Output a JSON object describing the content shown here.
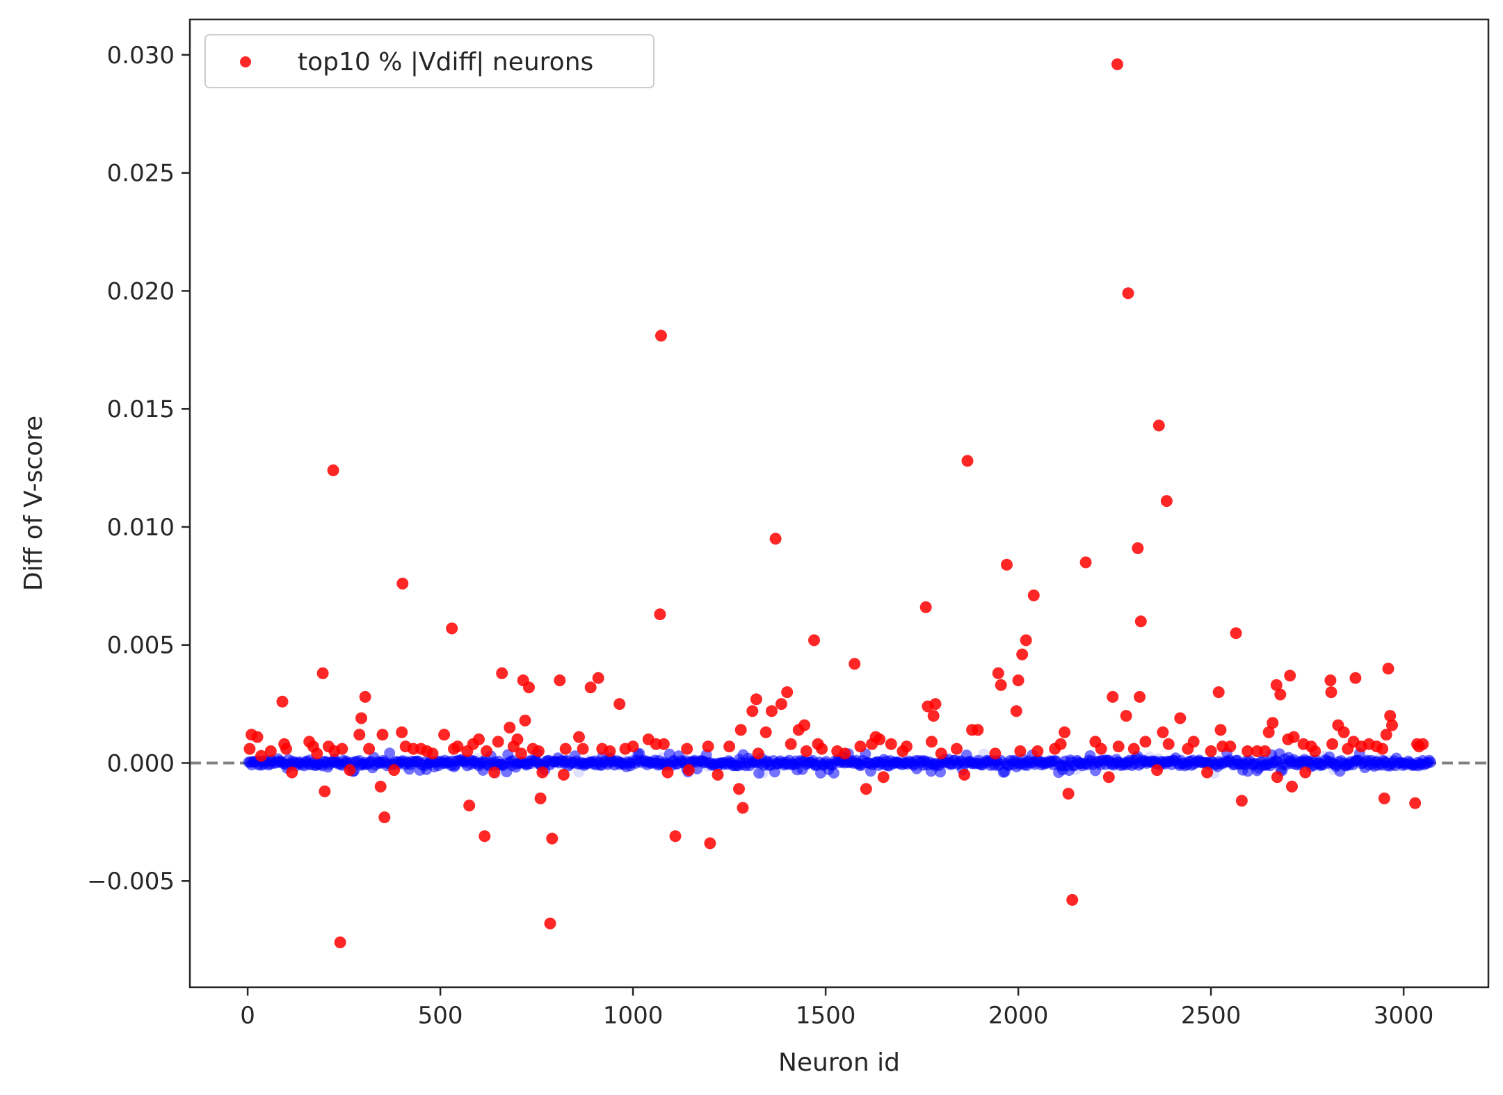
{
  "chart_data": {
    "type": "scatter",
    "title": "",
    "xlabel": "Neuron id",
    "ylabel": "Diff of V-score",
    "xlim": [
      -150,
      3220
    ],
    "ylim": [
      -0.0095,
      0.0315
    ],
    "x_ticks": [
      0,
      500,
      1000,
      1500,
      2000,
      2500,
      3000
    ],
    "x_tick_labels": [
      "0",
      "500",
      "1000",
      "1500",
      "2000",
      "2500",
      "3000"
    ],
    "y_ticks": [
      -0.005,
      0.0,
      0.005,
      0.01,
      0.015,
      0.02,
      0.025,
      0.03
    ],
    "y_tick_labels": [
      "−0.005",
      "0.000",
      "0.005",
      "0.010",
      "0.015",
      "0.020",
      "0.025",
      "0.030"
    ],
    "grid": false,
    "legend_position": "top-left",
    "reference_line": {
      "y": 0.0,
      "style": "dashed",
      "color": "#808080"
    },
    "background_series": {
      "color": "#0000ff",
      "x_range": [
        0,
        3070
      ],
      "y_range": [
        -0.0005,
        0.0005
      ]
    },
    "series": [
      {
        "name": "top10 % |Vdiff| neurons",
        "color": "#ff0000",
        "points": [
          [
            5,
            0.0006
          ],
          [
            10,
            0.0012
          ],
          [
            25,
            0.0011
          ],
          [
            35,
            0.0003
          ],
          [
            60,
            0.0005
          ],
          [
            90,
            0.0026
          ],
          [
            95,
            0.0008
          ],
          [
            100,
            0.0006
          ],
          [
            115,
            -0.0004
          ],
          [
            160,
            0.0009
          ],
          [
            170,
            0.0007
          ],
          [
            180,
            0.0004
          ],
          [
            195,
            0.0038
          ],
          [
            200,
            -0.0012
          ],
          [
            210,
            0.0007
          ],
          [
            222,
            0.0124
          ],
          [
            225,
            0.0005
          ],
          [
            240,
            -0.0076
          ],
          [
            245,
            0.0006
          ],
          [
            265,
            -0.0003
          ],
          [
            290,
            0.0012
          ],
          [
            295,
            0.0019
          ],
          [
            305,
            0.0028
          ],
          [
            315,
            0.0006
          ],
          [
            345,
            -0.001
          ],
          [
            350,
            0.0012
          ],
          [
            355,
            -0.0023
          ],
          [
            380,
            -0.0003
          ],
          [
            400,
            0.0013
          ],
          [
            402,
            0.0076
          ],
          [
            410,
            0.0007
          ],
          [
            430,
            0.0006
          ],
          [
            450,
            0.0006
          ],
          [
            465,
            0.0005
          ],
          [
            480,
            0.0004
          ],
          [
            510,
            0.0012
          ],
          [
            530,
            0.0057
          ],
          [
            535,
            0.0006
          ],
          [
            545,
            0.0007
          ],
          [
            570,
            0.0005
          ],
          [
            575,
            -0.0018
          ],
          [
            585,
            0.0008
          ],
          [
            600,
            0.001
          ],
          [
            615,
            -0.0031
          ],
          [
            620,
            0.0005
          ],
          [
            640,
            -0.0004
          ],
          [
            650,
            0.0009
          ],
          [
            660,
            0.0038
          ],
          [
            680,
            0.0015
          ],
          [
            690,
            0.0007
          ],
          [
            700,
            0.001
          ],
          [
            710,
            0.0004
          ],
          [
            715,
            0.0035
          ],
          [
            720,
            0.0018
          ],
          [
            730,
            0.0032
          ],
          [
            740,
            0.0006
          ],
          [
            755,
            0.0005
          ],
          [
            760,
            -0.0015
          ],
          [
            765,
            -0.0004
          ],
          [
            785,
            -0.0068
          ],
          [
            790,
            -0.0032
          ],
          [
            810,
            0.0035
          ],
          [
            820,
            -0.0005
          ],
          [
            825,
            0.0006
          ],
          [
            860,
            0.0011
          ],
          [
            870,
            0.0006
          ],
          [
            890,
            0.0032
          ],
          [
            910,
            0.0036
          ],
          [
            920,
            0.0006
          ],
          [
            940,
            0.0005
          ],
          [
            965,
            0.0025
          ],
          [
            980,
            0.0006
          ],
          [
            1000,
            0.0007
          ],
          [
            1040,
            0.001
          ],
          [
            1060,
            0.0008
          ],
          [
            1070,
            0.0063
          ],
          [
            1073,
            0.0181
          ],
          [
            1080,
            0.0008
          ],
          [
            1090,
            -0.0004
          ],
          [
            1110,
            -0.0031
          ],
          [
            1140,
            0.0006
          ],
          [
            1145,
            -0.0003
          ],
          [
            1195,
            0.0007
          ],
          [
            1200,
            -0.0034
          ],
          [
            1220,
            -0.0005
          ],
          [
            1250,
            0.0007
          ],
          [
            1275,
            -0.0011
          ],
          [
            1280,
            0.0014
          ],
          [
            1285,
            -0.0019
          ],
          [
            1310,
            0.0022
          ],
          [
            1320,
            0.0027
          ],
          [
            1325,
            0.0004
          ],
          [
            1345,
            0.0013
          ],
          [
            1360,
            0.0022
          ],
          [
            1370,
            0.0095
          ],
          [
            1385,
            0.0025
          ],
          [
            1400,
            0.003
          ],
          [
            1410,
            0.0008
          ],
          [
            1430,
            0.0014
          ],
          [
            1445,
            0.0016
          ],
          [
            1450,
            0.0005
          ],
          [
            1470,
            0.0052
          ],
          [
            1480,
            0.0008
          ],
          [
            1490,
            0.0006
          ],
          [
            1530,
            0.0005
          ],
          [
            1550,
            0.0004
          ],
          [
            1575,
            0.0042
          ],
          [
            1590,
            0.0007
          ],
          [
            1605,
            -0.0011
          ],
          [
            1620,
            0.0008
          ],
          [
            1630,
            0.0011
          ],
          [
            1640,
            0.001
          ],
          [
            1650,
            -0.0006
          ],
          [
            1670,
            0.0008
          ],
          [
            1700,
            0.0005
          ],
          [
            1710,
            0.0007
          ],
          [
            1760,
            0.0066
          ],
          [
            1765,
            0.0024
          ],
          [
            1775,
            0.0009
          ],
          [
            1780,
            0.002
          ],
          [
            1785,
            0.0025
          ],
          [
            1800,
            0.0004
          ],
          [
            1840,
            0.0006
          ],
          [
            1860,
            -0.0005
          ],
          [
            1868,
            0.0128
          ],
          [
            1880,
            0.0014
          ],
          [
            1895,
            0.0014
          ],
          [
            1940,
            0.0004
          ],
          [
            1948,
            0.0038
          ],
          [
            1955,
            0.0033
          ],
          [
            1970,
            0.0084
          ],
          [
            1995,
            0.0022
          ],
          [
            2000,
            0.0035
          ],
          [
            2005,
            0.0005
          ],
          [
            2010,
            0.0046
          ],
          [
            2020,
            0.0052
          ],
          [
            2040,
            0.0071
          ],
          [
            2050,
            0.0005
          ],
          [
            2095,
            0.0006
          ],
          [
            2110,
            0.0008
          ],
          [
            2120,
            0.0013
          ],
          [
            2130,
            -0.0013
          ],
          [
            2140,
            -0.0058
          ],
          [
            2175,
            0.0085
          ],
          [
            2200,
            0.0009
          ],
          [
            2215,
            0.0006
          ],
          [
            2235,
            -0.0006
          ],
          [
            2245,
            0.0028
          ],
          [
            2257,
            0.0296
          ],
          [
            2260,
            0.0007
          ],
          [
            2280,
            0.002
          ],
          [
            2285,
            0.0199
          ],
          [
            2300,
            0.0006
          ],
          [
            2310,
            0.0091
          ],
          [
            2315,
            0.0028
          ],
          [
            2318,
            0.006
          ],
          [
            2330,
            0.0009
          ],
          [
            2360,
            -0.0003
          ],
          [
            2365,
            0.0143
          ],
          [
            2375,
            0.0013
          ],
          [
            2385,
            0.0111
          ],
          [
            2390,
            0.0008
          ],
          [
            2420,
            0.0019
          ],
          [
            2440,
            0.0006
          ],
          [
            2455,
            0.0009
          ],
          [
            2490,
            -0.0004
          ],
          [
            2500,
            0.0005
          ],
          [
            2520,
            0.003
          ],
          [
            2525,
            0.0014
          ],
          [
            2530,
            0.0007
          ],
          [
            2550,
            0.0007
          ],
          [
            2565,
            0.0055
          ],
          [
            2580,
            -0.0016
          ],
          [
            2595,
            0.0005
          ],
          [
            2620,
            0.0005
          ],
          [
            2640,
            0.0005
          ],
          [
            2650,
            0.0013
          ],
          [
            2660,
            0.0017
          ],
          [
            2670,
            0.0033
          ],
          [
            2672,
            -0.0006
          ],
          [
            2680,
            0.0029
          ],
          [
            2700,
            0.001
          ],
          [
            2705,
            0.0037
          ],
          [
            2710,
            -0.001
          ],
          [
            2715,
            0.0011
          ],
          [
            2740,
            0.0008
          ],
          [
            2745,
            -0.0004
          ],
          [
            2760,
            0.0007
          ],
          [
            2770,
            0.0005
          ],
          [
            2810,
            0.0035
          ],
          [
            2812,
            0.003
          ],
          [
            2815,
            0.0008
          ],
          [
            2830,
            0.0016
          ],
          [
            2845,
            0.0013
          ],
          [
            2855,
            0.0006
          ],
          [
            2870,
            0.0009
          ],
          [
            2875,
            0.0036
          ],
          [
            2890,
            0.0007
          ],
          [
            2910,
            0.0008
          ],
          [
            2930,
            0.0007
          ],
          [
            2945,
            0.0006
          ],
          [
            2950,
            -0.0015
          ],
          [
            2955,
            0.0012
          ],
          [
            2960,
            0.004
          ],
          [
            2965,
            0.002
          ],
          [
            2970,
            0.0016
          ],
          [
            3030,
            -0.0017
          ],
          [
            3035,
            0.0008
          ],
          [
            3040,
            0.0007
          ],
          [
            3050,
            0.0008
          ]
        ]
      }
    ]
  }
}
